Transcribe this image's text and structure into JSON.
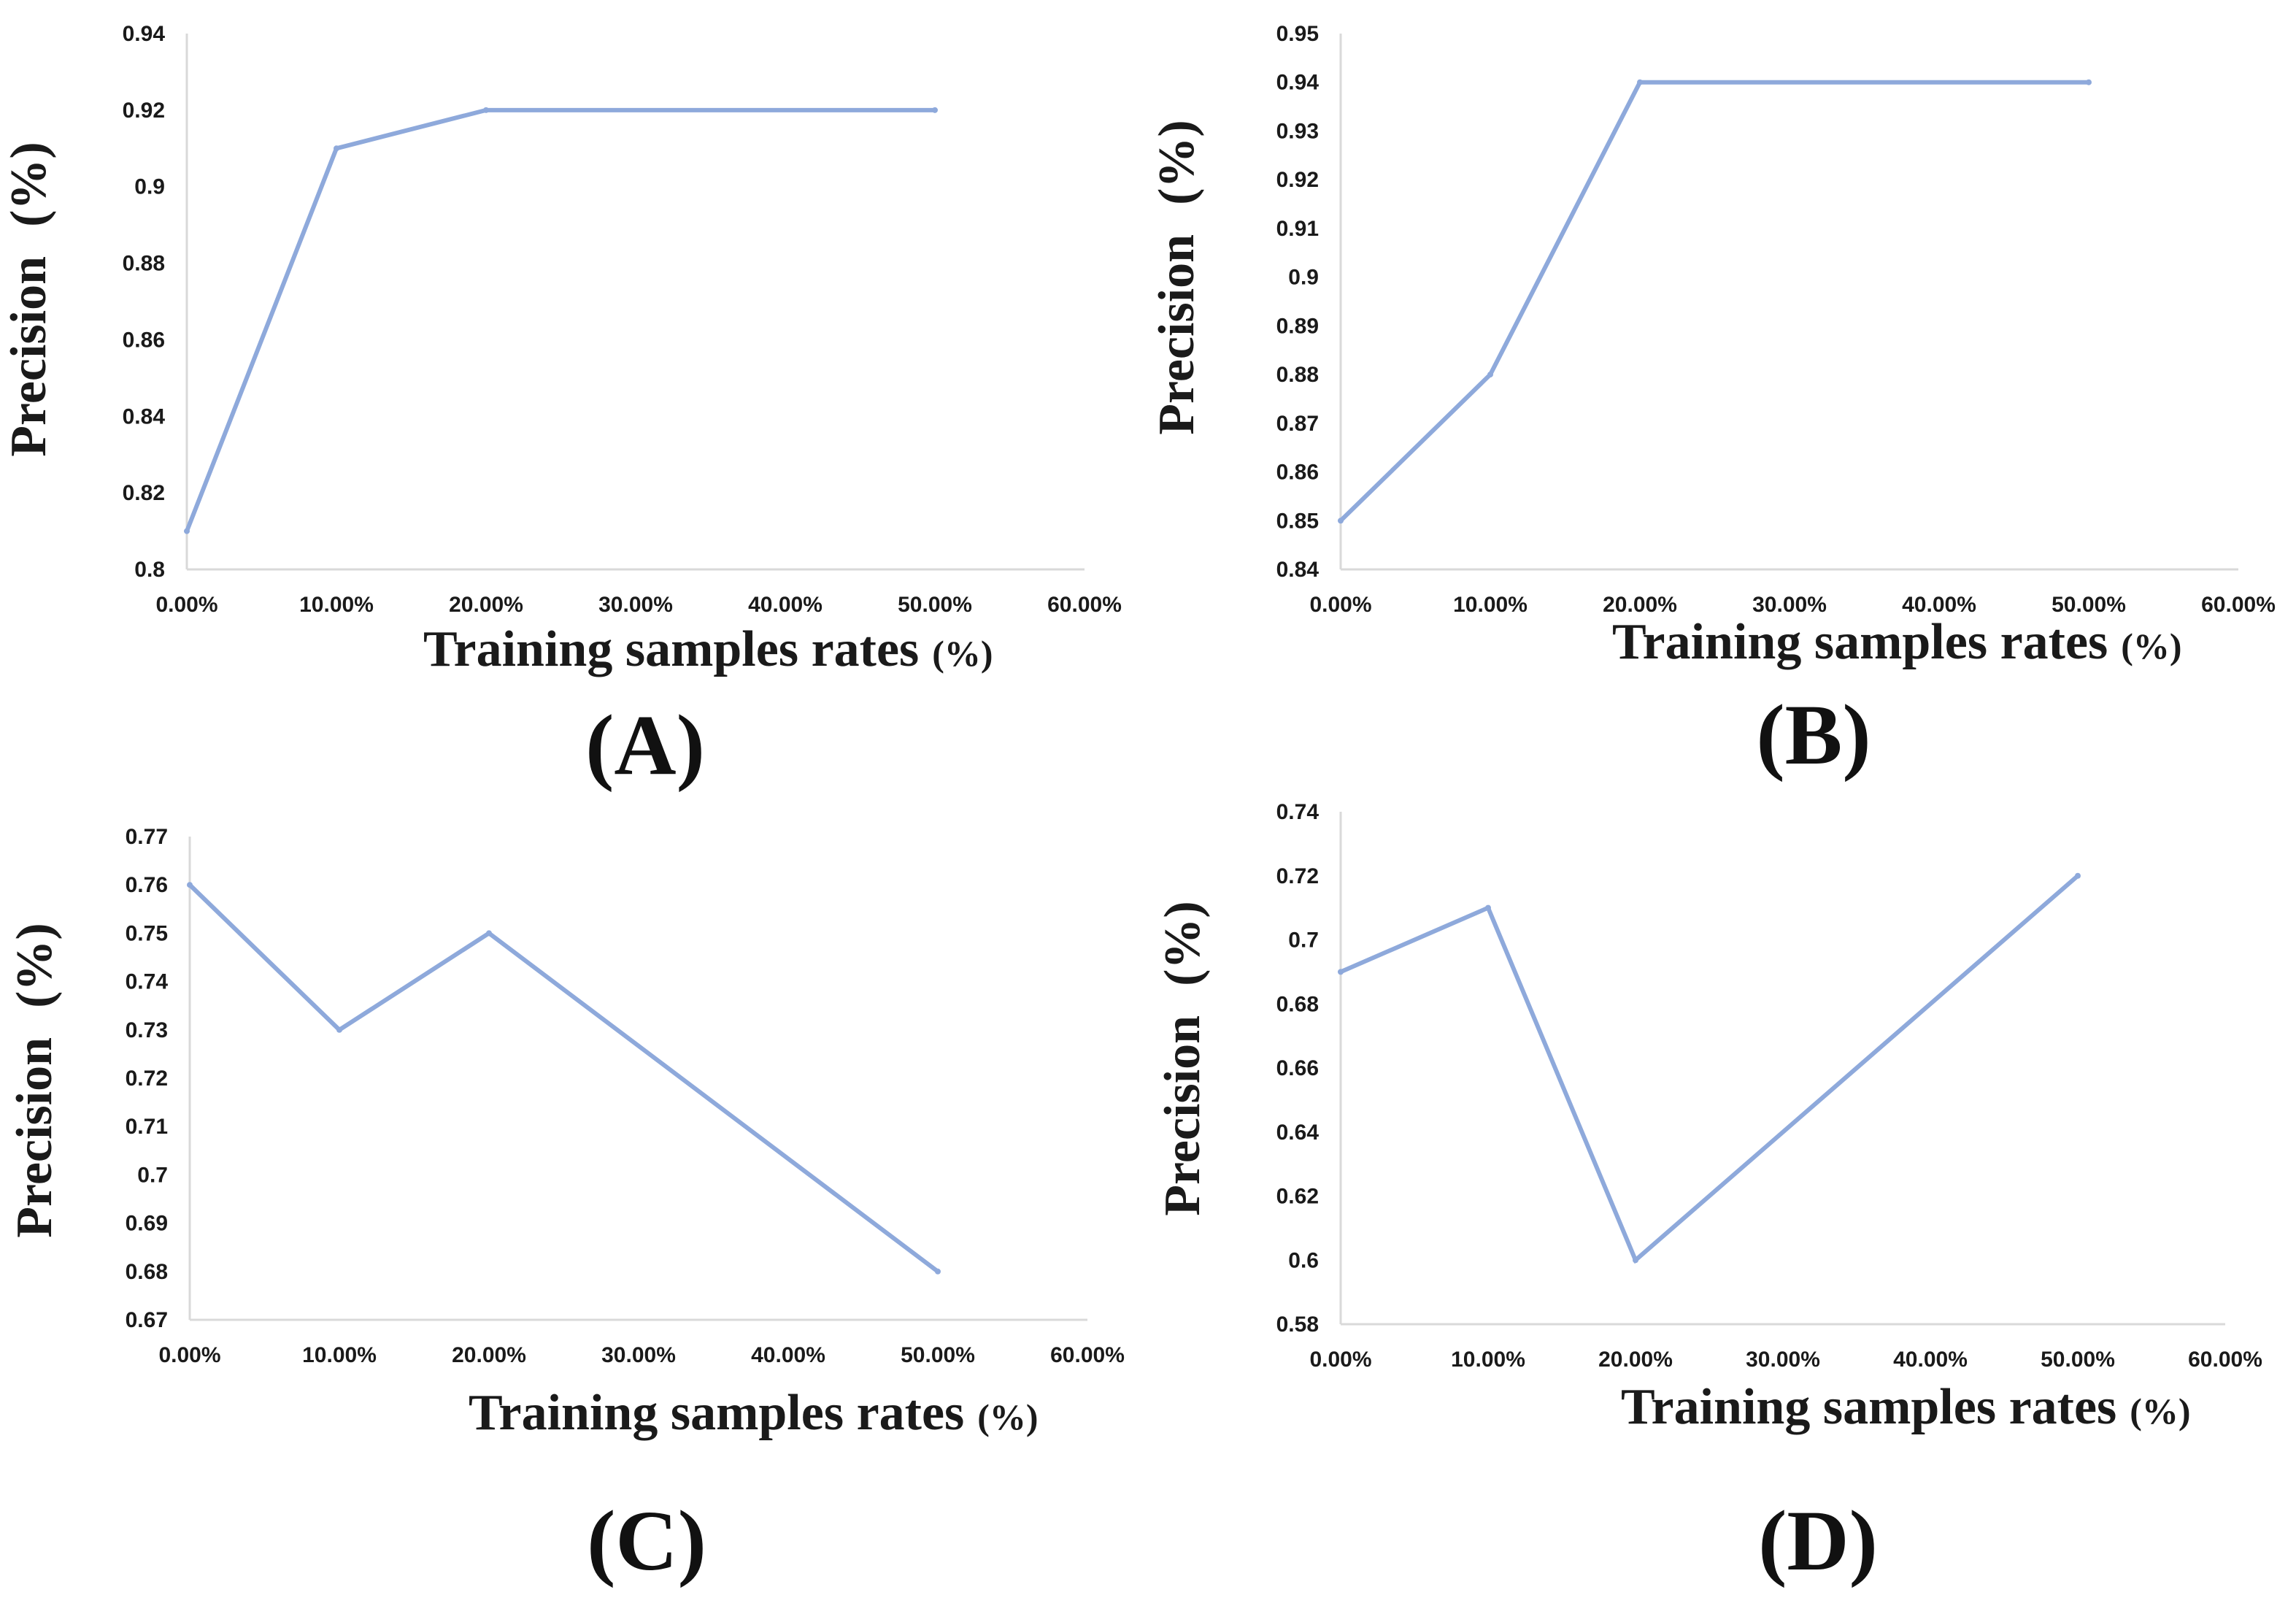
{
  "series_color": "#8EA9DB",
  "axis_color": "#D9D9D9",
  "chart_data": [
    {
      "type": "line",
      "panel": "(A)",
      "x": [
        "0.00%",
        "10.00%",
        "20.00%",
        "50.00%"
      ],
      "x_values": [
        0,
        10,
        20,
        50
      ],
      "values": [
        0.81,
        0.91,
        0.92,
        0.92
      ],
      "xticks": [
        "0.00%",
        "10.00%",
        "20.00%",
        "30.00%",
        "40.00%",
        "50.00%",
        "60.00%"
      ],
      "xlim": [
        0,
        60
      ],
      "yticks": [
        "0.8",
        "0.82",
        "0.84",
        "0.86",
        "0.88",
        "0.9",
        "0.92",
        "0.94"
      ],
      "ylim": [
        0.8,
        0.94
      ],
      "ylabel": "Precision",
      "ylabel_unit": "(%)",
      "xlabel": "Training samples rates",
      "xlabel_unit": "(%)"
    },
    {
      "type": "line",
      "panel": "(B)",
      "x": [
        "0.00%",
        "10.00%",
        "20.00%",
        "50.00%"
      ],
      "x_values": [
        0,
        10,
        20,
        50
      ],
      "values": [
        0.85,
        0.88,
        0.94,
        0.94
      ],
      "xticks": [
        "0.00%",
        "10.00%",
        "20.00%",
        "30.00%",
        "40.00%",
        "50.00%",
        "60.00%"
      ],
      "xlim": [
        0,
        60
      ],
      "yticks": [
        "0.84",
        "0.85",
        "0.86",
        "0.87",
        "0.88",
        "0.89",
        "0.9",
        "0.91",
        "0.92",
        "0.93",
        "0.94",
        "0.95"
      ],
      "ylim": [
        0.84,
        0.95
      ],
      "ylabel": "Precision",
      "ylabel_unit": "(%)",
      "xlabel": "Training samples rates",
      "xlabel_unit": "(%)"
    },
    {
      "type": "line",
      "panel": "(C)",
      "x": [
        "0.00%",
        "10.00%",
        "20.00%",
        "50.00%"
      ],
      "x_values": [
        0,
        10,
        20,
        50
      ],
      "values": [
        0.76,
        0.73,
        0.75,
        0.68
      ],
      "xticks": [
        "0.00%",
        "10.00%",
        "20.00%",
        "30.00%",
        "40.00%",
        "50.00%",
        "60.00%"
      ],
      "xlim": [
        0,
        60
      ],
      "yticks": [
        "0.67",
        "0.68",
        "0.69",
        "0.7",
        "0.71",
        "0.72",
        "0.73",
        "0.74",
        "0.75",
        "0.76",
        "0.77"
      ],
      "ylim": [
        0.67,
        0.77
      ],
      "ylabel": "Precision",
      "ylabel_unit": "(%)",
      "xlabel": "Training samples rates",
      "xlabel_unit": "(%)"
    },
    {
      "type": "line",
      "panel": "(D)",
      "x": [
        "0.00%",
        "10.00%",
        "20.00%",
        "50.00%"
      ],
      "x_values": [
        0,
        10,
        20,
        50
      ],
      "values": [
        0.69,
        0.71,
        0.6,
        0.72
      ],
      "xticks": [
        "0.00%",
        "10.00%",
        "20.00%",
        "30.00%",
        "40.00%",
        "50.00%",
        "60.00%"
      ],
      "xlim": [
        0,
        60
      ],
      "yticks": [
        "0.58",
        "0.6",
        "0.62",
        "0.64",
        "0.66",
        "0.68",
        "0.7",
        "0.72",
        "0.74"
      ],
      "ylim": [
        0.58,
        0.74
      ],
      "ylabel": "Precision",
      "ylabel_unit": "(%)",
      "xlabel": "Training samples rates",
      "xlabel_unit": "(%)"
    }
  ]
}
